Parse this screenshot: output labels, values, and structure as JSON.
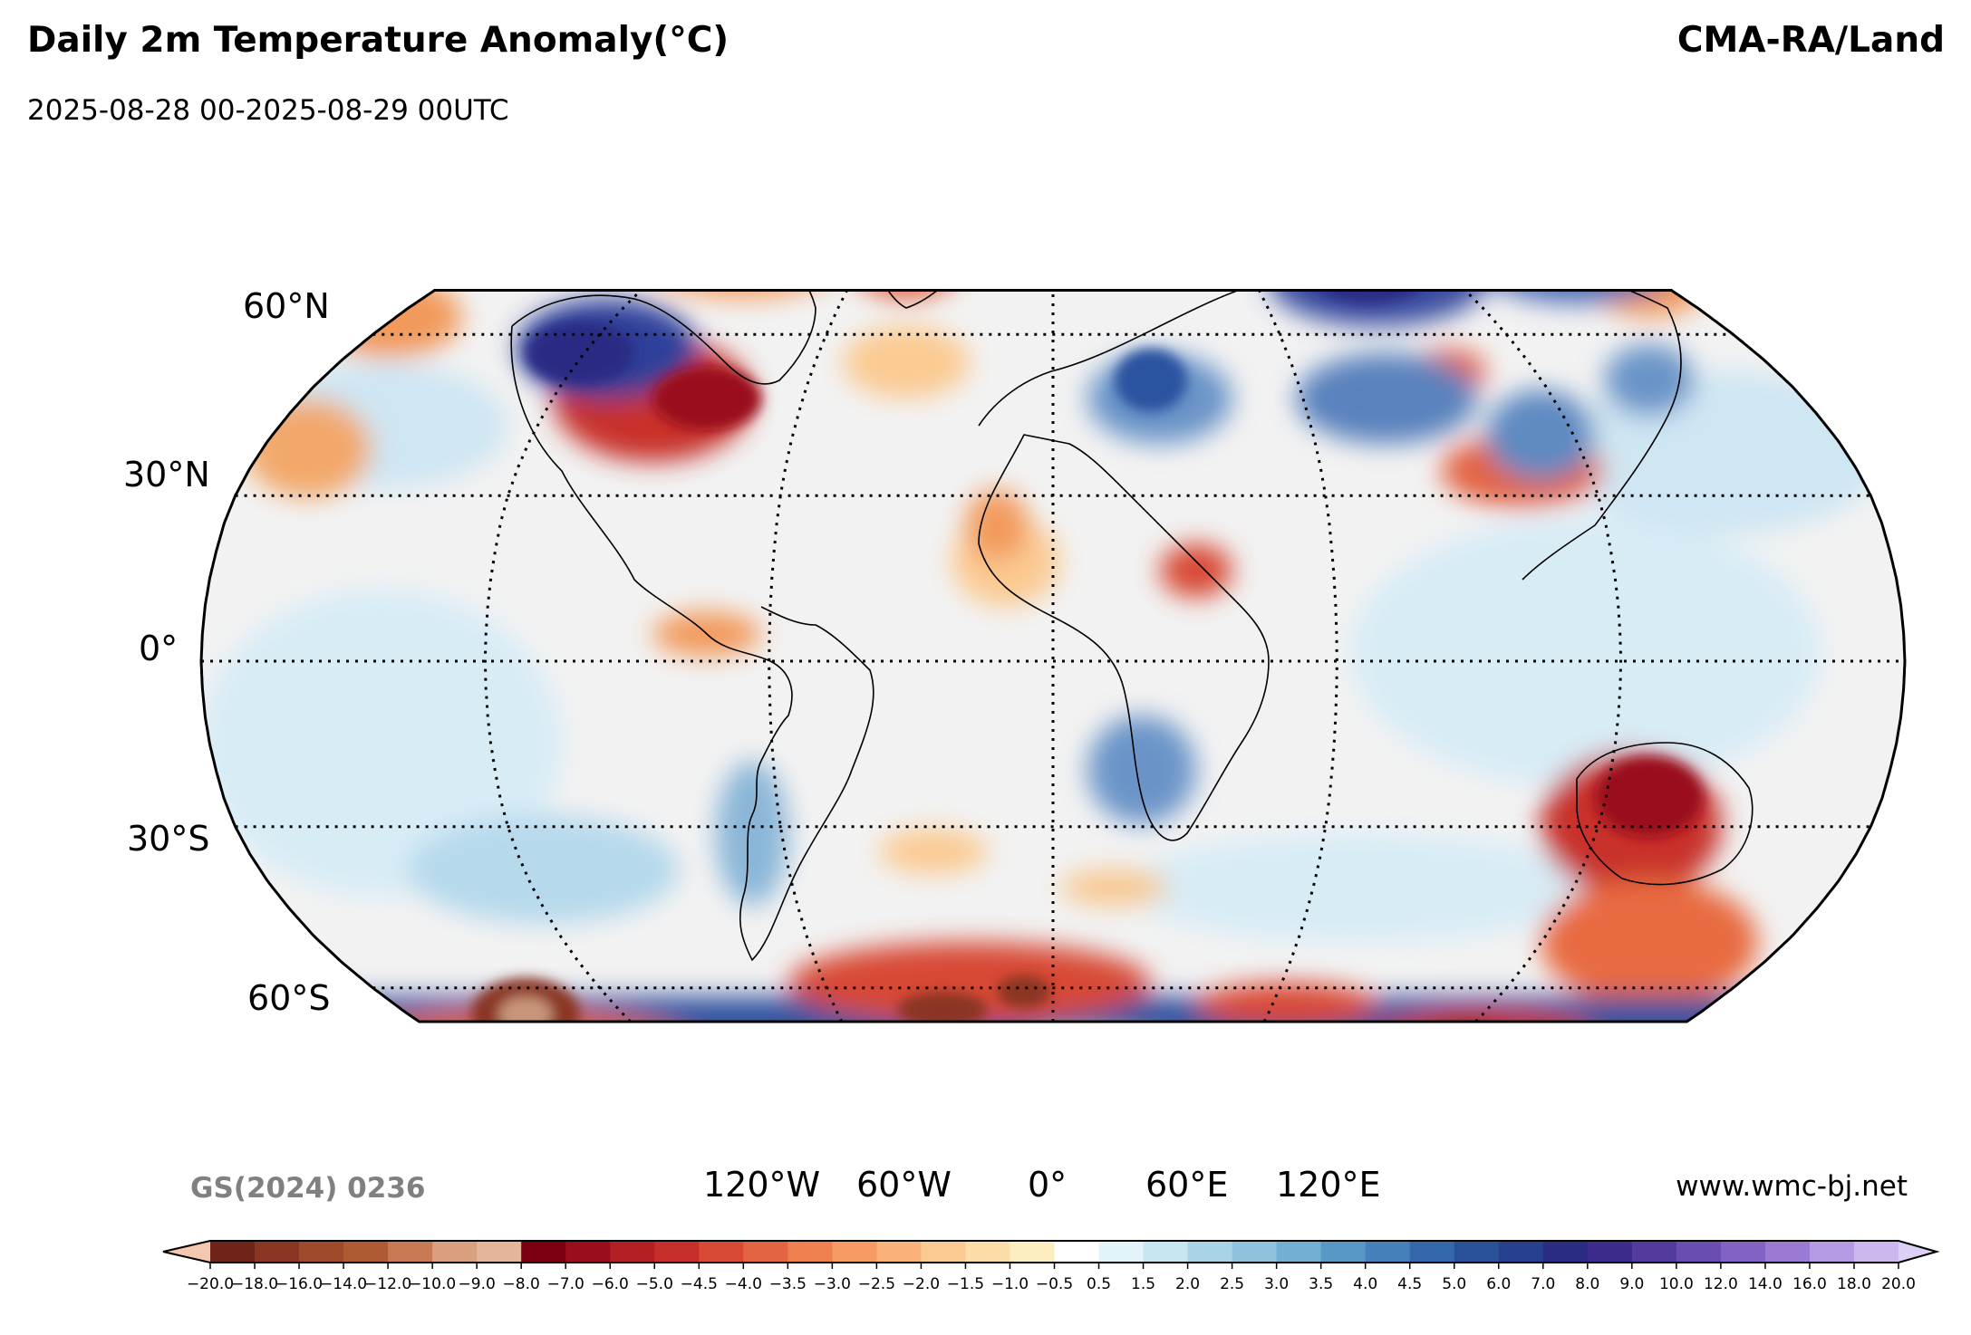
{
  "header": {
    "title": "Daily 2m Temperature Anomaly(°C)",
    "subtitle": "2025-08-28 00-2025-08-29 00UTC",
    "source": "CMA-RA/Land"
  },
  "footer": {
    "watermark": "GS(2024) 0236",
    "website": "www.wmc-bj.net"
  },
  "map": {
    "projection": "Robinson",
    "lat_labels": [
      "60°N",
      "30°N",
      "0°",
      "30°S",
      "60°S"
    ],
    "lon_labels": [
      "120°W",
      "60°W",
      "0°",
      "60°E",
      "120°E"
    ],
    "gridlines": "dotted",
    "features": [
      "coastlines",
      "country borders"
    ]
  },
  "colorbar": {
    "ticks": [
      "−20.0",
      "−18.0",
      "−16.0",
      "−14.0",
      "−12.0",
      "−10.0",
      "−9.0",
      "−8.0",
      "−7.0",
      "−6.0",
      "−5.0",
      "−4.5",
      "−4.0",
      "−3.5",
      "−3.0",
      "−2.5",
      "−2.0",
      "−1.5",
      "−1.0",
      "−0.5",
      "0.5",
      "1.5",
      "2.0",
      "2.5",
      "3.0",
      "3.5",
      "4.0",
      "4.5",
      "5.0",
      "6.0",
      "7.0",
      "8.0",
      "9.0",
      "10.0",
      "12.0",
      "14.0",
      "16.0",
      "18.0",
      "20.0"
    ],
    "colors": [
      "#6e2418",
      "#8a3623",
      "#a04a2c",
      "#b05a34",
      "#c87a55",
      "#d9a080",
      "#e4b59a",
      "#7a0010",
      "#9a0d1a",
      "#b41f23",
      "#c72f2a",
      "#d84a34",
      "#e36442",
      "#ee804f",
      "#f59a62",
      "#f8b27a",
      "#fbca92",
      "#fcdca8",
      "#fdeec2",
      "#ffffff",
      "#e2f3fa",
      "#c7e6f2",
      "#a9d4e8",
      "#8ec2dd",
      "#72afd3",
      "#5898c7",
      "#4580ba",
      "#3468aa",
      "#2a5299",
      "#263f8e",
      "#2a2c84",
      "#3c2a8c",
      "#523a9e",
      "#6a4db0",
      "#8262c4",
      "#9b7ad4",
      "#b49ae2",
      "#cbb6ee"
    ],
    "extend_low_color": "#f4c7b0",
    "extend_high_color": "#dcd0f6"
  },
  "colors": {
    "ocean_base": "#f2f2f2",
    "warm": "#d84a34",
    "cold": "#3a57a5"
  }
}
